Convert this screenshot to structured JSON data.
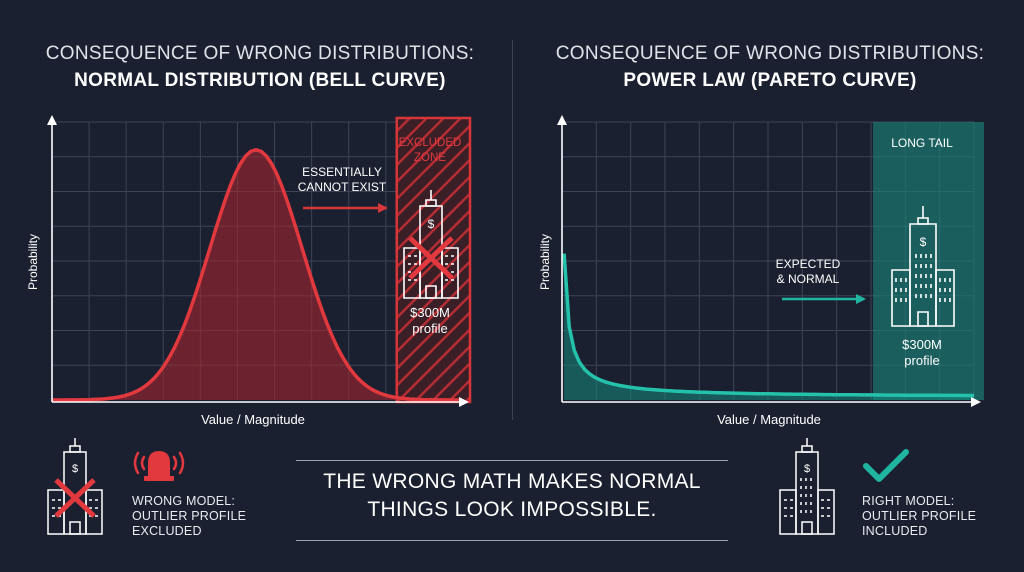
{
  "left": {
    "title_line1": "CONSEQUENCE OF WRONG DISTRIBUTIONS:",
    "title_line2": "NORMAL DISTRIBUTION (BELL CURVE)",
    "ylabel": "Probability",
    "xlabel": "Value / Magnitude",
    "zone_label_line1": "EXCLUDED",
    "zone_label_line2": "ZONE",
    "annotation_line1": "ESSENTIALLY",
    "annotation_line2": "CANNOT EXIST",
    "profile_line1": "$300M",
    "profile_line2": "profile",
    "color": "#d6353a"
  },
  "right": {
    "title_line1": "CONSEQUENCE OF WRONG DISTRIBUTIONS:",
    "title_line2": "POWER LAW (PARETO CURVE)",
    "ylabel": "Probability",
    "xlabel": "Value / Magnitude",
    "zone_label": "LONG TAIL",
    "annotation_line1": "EXPECTED",
    "annotation_line2": "& NORMAL",
    "profile_line1": "$300M",
    "profile_line2": "profile",
    "color": "#1fb5a0"
  },
  "bottom": {
    "message_line1": "THE WRONG MATH MAKES NORMAL",
    "message_line2": "THINGS LOOK IMPOSSIBLE.",
    "left_model_line1": "WRONG MODEL:",
    "left_model_line2": "OUTLIER PROFILE",
    "left_model_line3": "EXCLUDED",
    "right_model_line1": "RIGHT MODEL:",
    "right_model_line2": "OUTLIER PROFILE",
    "right_model_line3": "INCLUDED",
    "icons": [
      "building-crossed-icon",
      "alarm-icon",
      "building-icon",
      "checkmark-icon"
    ]
  },
  "chart_data": [
    {
      "type": "area",
      "title": "CONSEQUENCE OF WRONG DISTRIBUTIONS: NORMAL DISTRIBUTION (BELL CURVE)",
      "xlabel": "Value / Magnitude",
      "ylabel": "Probability",
      "xlim": [
        0,
        10
      ],
      "ylim": [
        0,
        1
      ],
      "grid": true,
      "series": [
        {
          "function": "normal",
          "mean": 5.0,
          "sd": 1.13,
          "peak": 0.9,
          "points": 80
        }
      ],
      "shaded_region": {
        "x": [
          8.45,
          10
        ]
      },
      "annotations": [
        "ESSENTIALLY CANNOT EXIST",
        "EXCLUDED ZONE",
        "$300M profile"
      ]
    },
    {
      "type": "area",
      "title": "CONSEQUENCE OF WRONG DISTRIBUTIONS: POWER LAW (PARETO CURVE)",
      "xlabel": "Value / Magnitude",
      "ylabel": "Probability",
      "xlim": [
        0,
        10
      ],
      "ylim": [
        0,
        1
      ],
      "grid": true,
      "series": [
        {
          "function": "power",
          "a": 0.062,
          "b": 0.07,
          "c": 0.01,
          "x_start": 0.05,
          "points": 80
        }
      ],
      "shaded_region": {
        "x": [
          7.55,
          10
        ]
      },
      "annotations": [
        "EXPECTED & NORMAL",
        "LONG TAIL",
        "$300M profile"
      ]
    }
  ]
}
